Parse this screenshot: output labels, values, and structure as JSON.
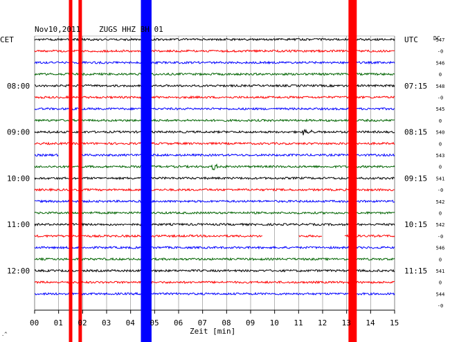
{
  "header": {
    "date": "Nov10,2011",
    "station": "ZUGS HHZ BH 01",
    "left_zone": "CET",
    "right_zone": "UTC",
    "dc_label": "DC"
  },
  "colors": {
    "black": "#000000",
    "red": "#ff0000",
    "blue": "#0000ff",
    "green": "#006400",
    "grid": "#808080"
  },
  "chart_data": {
    "type": "line",
    "xlabel": "Zeit [min]",
    "xlim": [
      0,
      15
    ],
    "x_ticks": [
      "00",
      "01",
      "02",
      "03",
      "04",
      "05",
      "06",
      "07",
      "08",
      "09",
      "10",
      "11",
      "12",
      "13",
      "14",
      "15"
    ],
    "left_time_labels": [
      {
        "row": 4,
        "text": "08:00"
      },
      {
        "row": 8,
        "text": "09:00"
      },
      {
        "row": 12,
        "text": "10:00"
      },
      {
        "row": 16,
        "text": "11:00"
      },
      {
        "row": 20,
        "text": "12:00"
      }
    ],
    "right_time_labels": [
      {
        "row": 0,
        "text": "UTC"
      },
      {
        "row": 4,
        "text": "07:15"
      },
      {
        "row": 8,
        "text": "08:15"
      },
      {
        "row": 12,
        "text": "09:15"
      },
      {
        "row": 16,
        "text": "10:15"
      },
      {
        "row": 20,
        "text": "11:15"
      }
    ],
    "dc_values": [
      "547",
      "-0",
      "546",
      "0",
      "548",
      "-0",
      "545",
      "0",
      "540",
      "0",
      "543",
      "0",
      "541",
      "-0",
      "542",
      "0",
      "542",
      "-0",
      "546",
      "0",
      "541",
      "0",
      "544",
      "-0"
    ],
    "traces_per_hour": 4,
    "row_colors": [
      "black",
      "red",
      "blue",
      "green"
    ],
    "trace_count": 23,
    "events": [
      {
        "type": "saturated_band",
        "color": "red",
        "x_minutes": [
          1.5,
          1.9
        ]
      },
      {
        "type": "saturated_band",
        "color": "blue",
        "x_minutes": [
          4.5,
          4.8
        ]
      },
      {
        "type": "saturated_band",
        "color": "red",
        "x_minutes": [
          13.15,
          13.35
        ]
      },
      {
        "type": "local_event",
        "row": 8,
        "x_minutes": 11.2
      },
      {
        "type": "local_event",
        "row": 11,
        "x_minutes": 7.4
      }
    ],
    "gaps": [
      {
        "row": 10,
        "x_minutes": [
          1.0,
          1.9
        ]
      },
      {
        "row": 17,
        "x_minutes": [
          9.5,
          11.0
        ]
      },
      {
        "row": 17,
        "x_minutes": [
          12.0,
          12.9
        ]
      }
    ],
    "grid": true
  }
}
